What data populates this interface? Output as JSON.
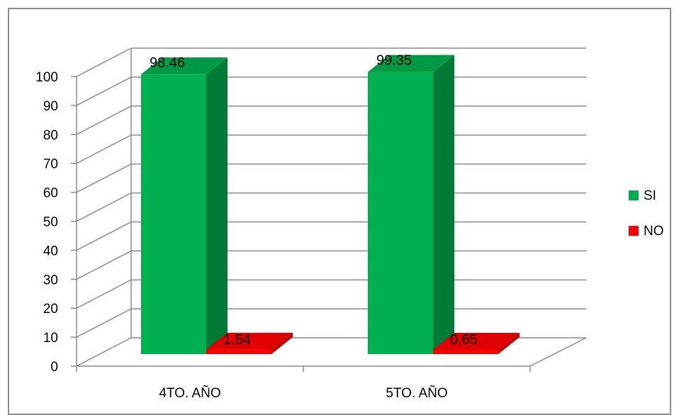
{
  "chart_data": {
    "type": "bar",
    "style": "3d-clustered-column",
    "categories": [
      "4TO. AÑO",
      "5TO. AÑO"
    ],
    "series": [
      {
        "name": "SI",
        "values": [
          98.46,
          99.35
        ],
        "color": "#00b050",
        "side_color": "#007a37",
        "top_color": "#009a45"
      },
      {
        "name": "NO",
        "values": [
          1.54,
          0.65
        ],
        "color": "#ff0000",
        "side_color": "#b80000",
        "top_color": "#e00000"
      }
    ],
    "data_labels": [
      [
        "98.46",
        "99.35"
      ],
      [
        "1.54",
        "0.65"
      ]
    ],
    "ylim": [
      0,
      100
    ],
    "yticks": [
      "0",
      "10",
      "20",
      "30",
      "40",
      "50",
      "60",
      "70",
      "80",
      "90",
      "100"
    ],
    "grid": true,
    "legend_position": "right"
  }
}
